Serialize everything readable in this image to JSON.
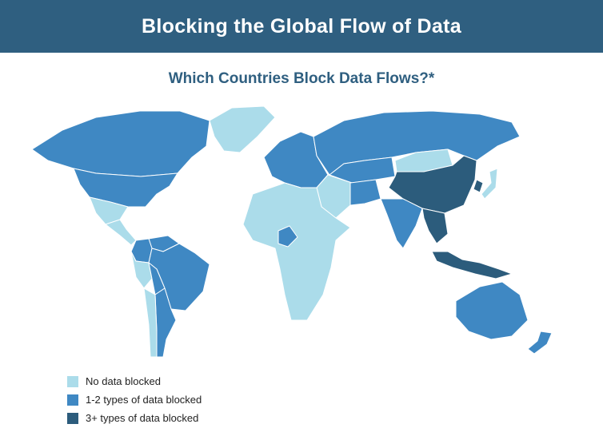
{
  "header": {
    "title": "Blocking the Global Flow of Data"
  },
  "map": {
    "title": "Which Countries Block Data Flows?*",
    "colors": {
      "none": "#abdcea",
      "some": "#3f88c3",
      "many": "#2c5c7c",
      "header": "#2f5f80"
    },
    "legend": [
      {
        "category": "none",
        "label": "No data blocked",
        "color": "#abdcea"
      },
      {
        "category": "some",
        "label": "1-2 types of data blocked",
        "color": "#3f88c3"
      },
      {
        "category": "many",
        "label": "3+ types of data blocked",
        "color": "#2c5c7c"
      }
    ],
    "regions": [
      {
        "name": "United States",
        "category": "some"
      },
      {
        "name": "Canada",
        "category": "some"
      },
      {
        "name": "Greenland",
        "category": "none"
      },
      {
        "name": "Mexico",
        "category": "none"
      },
      {
        "name": "Central America",
        "category": "none"
      },
      {
        "name": "Colombia",
        "category": "some"
      },
      {
        "name": "Venezuela",
        "category": "some"
      },
      {
        "name": "Brazil",
        "category": "some"
      },
      {
        "name": "Peru",
        "category": "none"
      },
      {
        "name": "Bolivia",
        "category": "some"
      },
      {
        "name": "Argentina",
        "category": "some"
      },
      {
        "name": "Chile",
        "category": "none"
      },
      {
        "name": "Europe",
        "category": "some"
      },
      {
        "name": "Russia",
        "category": "some"
      },
      {
        "name": "Mongolia",
        "category": "none"
      },
      {
        "name": "China",
        "category": "many"
      },
      {
        "name": "Kazakhstan",
        "category": "some"
      },
      {
        "name": "Iran",
        "category": "some"
      },
      {
        "name": "India",
        "category": "some"
      },
      {
        "name": "Vietnam",
        "category": "many"
      },
      {
        "name": "Indonesia",
        "category": "many"
      },
      {
        "name": "Australia",
        "category": "some"
      },
      {
        "name": "New Zealand",
        "category": "some"
      },
      {
        "name": "Japan",
        "category": "none"
      },
      {
        "name": "Korea",
        "category": "many"
      },
      {
        "name": "Nigeria",
        "category": "some"
      },
      {
        "name": "Africa",
        "category": "none"
      },
      {
        "name": "Middle East",
        "category": "none"
      }
    ]
  }
}
